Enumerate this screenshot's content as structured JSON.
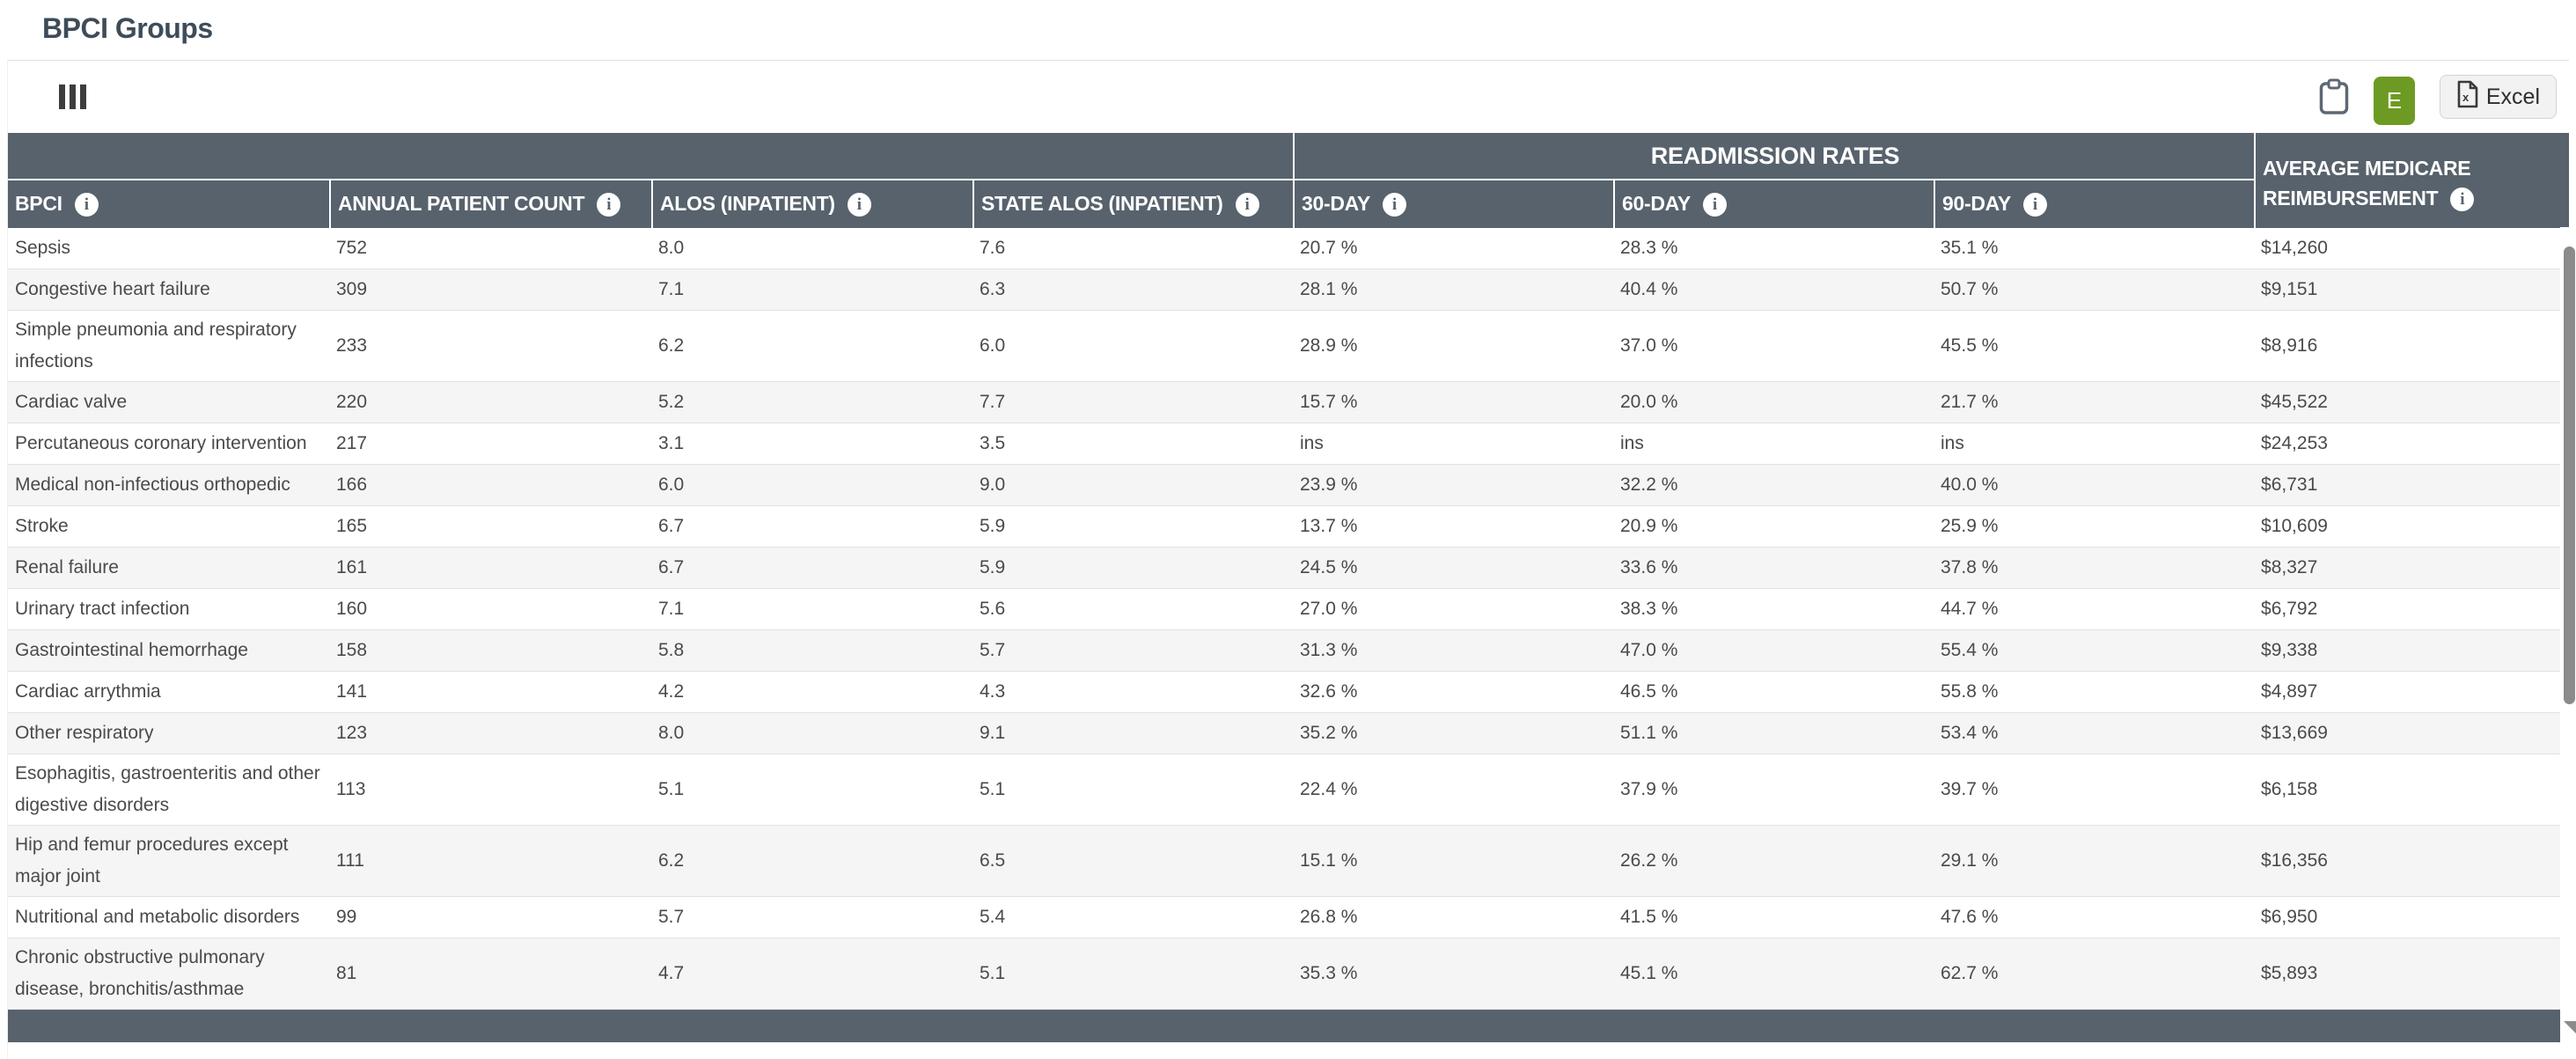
{
  "page": {
    "title": "BPCI Groups"
  },
  "toolbar": {
    "e_button_label": "E",
    "excel_button_label": "Excel"
  },
  "icons": {
    "info_glyph": "i",
    "columns_icon": "columns-icon",
    "clipboard_icon": "clipboard-icon",
    "excel_file_icon": "excel-file-icon"
  },
  "colors": {
    "header_slate": "#57626c",
    "title_color": "#3e4c59",
    "stripe_gray": "#f5f5f5",
    "green_button": "#6d9a22",
    "scrollbar_thumb": "#8b8b8b"
  },
  "table": {
    "group_header": {
      "readmission": "READMISSION RATES"
    },
    "columns": [
      {
        "label": "BPCI"
      },
      {
        "label": "ANNUAL PATIENT COUNT"
      },
      {
        "label": "ALOS (INPATIENT)"
      },
      {
        "label": "STATE ALOS (INPATIENT)"
      },
      {
        "label": "30-DAY"
      },
      {
        "label": "60-DAY"
      },
      {
        "label": "90-DAY"
      },
      {
        "label": "AVERAGE MEDICARE REIMBURSEMENT"
      }
    ],
    "rows": [
      {
        "bpci": "Sepsis",
        "annual_patient_count": "752",
        "alos_inpatient": "8.0",
        "state_alos_inpatient": "7.6",
        "day30": "20.7 %",
        "day60": "28.3 %",
        "day90": "35.1 %",
        "avg_medicare_reimbursement": "$14,260"
      },
      {
        "bpci": "Congestive heart failure",
        "annual_patient_count": "309",
        "alos_inpatient": "7.1",
        "state_alos_inpatient": "6.3",
        "day30": "28.1 %",
        "day60": "40.4 %",
        "day90": "50.7 %",
        "avg_medicare_reimbursement": "$9,151"
      },
      {
        "bpci": "Simple pneumonia and respiratory infections",
        "annual_patient_count": "233",
        "alos_inpatient": "6.2",
        "state_alos_inpatient": "6.0",
        "day30": "28.9 %",
        "day60": "37.0 %",
        "day90": "45.5 %",
        "avg_medicare_reimbursement": "$8,916"
      },
      {
        "bpci": "Cardiac valve",
        "annual_patient_count": "220",
        "alos_inpatient": "5.2",
        "state_alos_inpatient": "7.7",
        "day30": "15.7 %",
        "day60": "20.0 %",
        "day90": "21.7 %",
        "avg_medicare_reimbursement": "$45,522"
      },
      {
        "bpci": "Percutaneous coronary intervention",
        "annual_patient_count": "217",
        "alos_inpatient": "3.1",
        "state_alos_inpatient": "3.5",
        "day30": "ins",
        "day60": "ins",
        "day90": "ins",
        "avg_medicare_reimbursement": "$24,253"
      },
      {
        "bpci": "Medical non-infectious orthopedic",
        "annual_patient_count": "166",
        "alos_inpatient": "6.0",
        "state_alos_inpatient": "9.0",
        "day30": "23.9 %",
        "day60": "32.2 %",
        "day90": "40.0 %",
        "avg_medicare_reimbursement": "$6,731"
      },
      {
        "bpci": "Stroke",
        "annual_patient_count": "165",
        "alos_inpatient": "6.7",
        "state_alos_inpatient": "5.9",
        "day30": "13.7 %",
        "day60": "20.9 %",
        "day90": "25.9 %",
        "avg_medicare_reimbursement": "$10,609"
      },
      {
        "bpci": "Renal failure",
        "annual_patient_count": "161",
        "alos_inpatient": "6.7",
        "state_alos_inpatient": "5.9",
        "day30": "24.5 %",
        "day60": "33.6 %",
        "day90": "37.8 %",
        "avg_medicare_reimbursement": "$8,327"
      },
      {
        "bpci": "Urinary tract infection",
        "annual_patient_count": "160",
        "alos_inpatient": "7.1",
        "state_alos_inpatient": "5.6",
        "day30": "27.0 %",
        "day60": "38.3 %",
        "day90": "44.7 %",
        "avg_medicare_reimbursement": "$6,792"
      },
      {
        "bpci": "Gastrointestinal hemorrhage",
        "annual_patient_count": "158",
        "alos_inpatient": "5.8",
        "state_alos_inpatient": "5.7",
        "day30": "31.3 %",
        "day60": "47.0 %",
        "day90": "55.4 %",
        "avg_medicare_reimbursement": "$9,338"
      },
      {
        "bpci": "Cardiac arrythmia",
        "annual_patient_count": "141",
        "alos_inpatient": "4.2",
        "state_alos_inpatient": "4.3",
        "day30": "32.6 %",
        "day60": "46.5 %",
        "day90": "55.8 %",
        "avg_medicare_reimbursement": "$4,897"
      },
      {
        "bpci": "Other respiratory",
        "annual_patient_count": "123",
        "alos_inpatient": "8.0",
        "state_alos_inpatient": "9.1",
        "day30": "35.2 %",
        "day60": "51.1 %",
        "day90": "53.4 %",
        "avg_medicare_reimbursement": "$13,669"
      },
      {
        "bpci": "Esophagitis, gastroenteritis and other digestive disorders",
        "annual_patient_count": "113",
        "alos_inpatient": "5.1",
        "state_alos_inpatient": "5.1",
        "day30": "22.4 %",
        "day60": "37.9 %",
        "day90": "39.7 %",
        "avg_medicare_reimbursement": "$6,158"
      },
      {
        "bpci": "Hip and femur procedures except major joint",
        "annual_patient_count": "111",
        "alos_inpatient": "6.2",
        "state_alos_inpatient": "6.5",
        "day30": "15.1 %",
        "day60": "26.2 %",
        "day90": "29.1 %",
        "avg_medicare_reimbursement": "$16,356"
      },
      {
        "bpci": "Nutritional and metabolic disorders",
        "annual_patient_count": "99",
        "alos_inpatient": "5.7",
        "state_alos_inpatient": "5.4",
        "day30": "26.8 %",
        "day60": "41.5 %",
        "day90": "47.6 %",
        "avg_medicare_reimbursement": "$6,950"
      },
      {
        "bpci": "Chronic obstructive pulmonary disease, bronchitis/asthmae",
        "annual_patient_count": "81",
        "alos_inpatient": "4.7",
        "state_alos_inpatient": "5.1",
        "day30": "35.3 %",
        "day60": "45.1 %",
        "day90": "62.7 %",
        "avg_medicare_reimbursement": "$5,893"
      }
    ]
  }
}
